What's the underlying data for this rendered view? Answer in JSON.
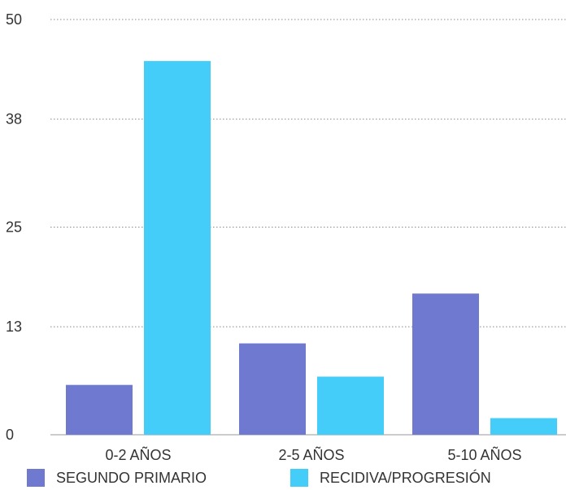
{
  "chart_data": {
    "type": "bar",
    "categories": [
      "0-2 AÑOS",
      "2-5 AÑOS",
      "5-10 AÑOS"
    ],
    "series": [
      {
        "name": "SEGUNDO PRIMARIO",
        "values": [
          6,
          11,
          17
        ],
        "color": "#6f79cf"
      },
      {
        "name": "RECIDIVA/PROGRESIÓN",
        "values": [
          45,
          7,
          2
        ],
        "color": "#45cdf9"
      }
    ],
    "y_ticks": [
      "0",
      "13",
      "25",
      "38",
      "50"
    ],
    "ylim": [
      0,
      50
    ],
    "grid": "horizontal dotted",
    "legend_position": "bottom"
  }
}
